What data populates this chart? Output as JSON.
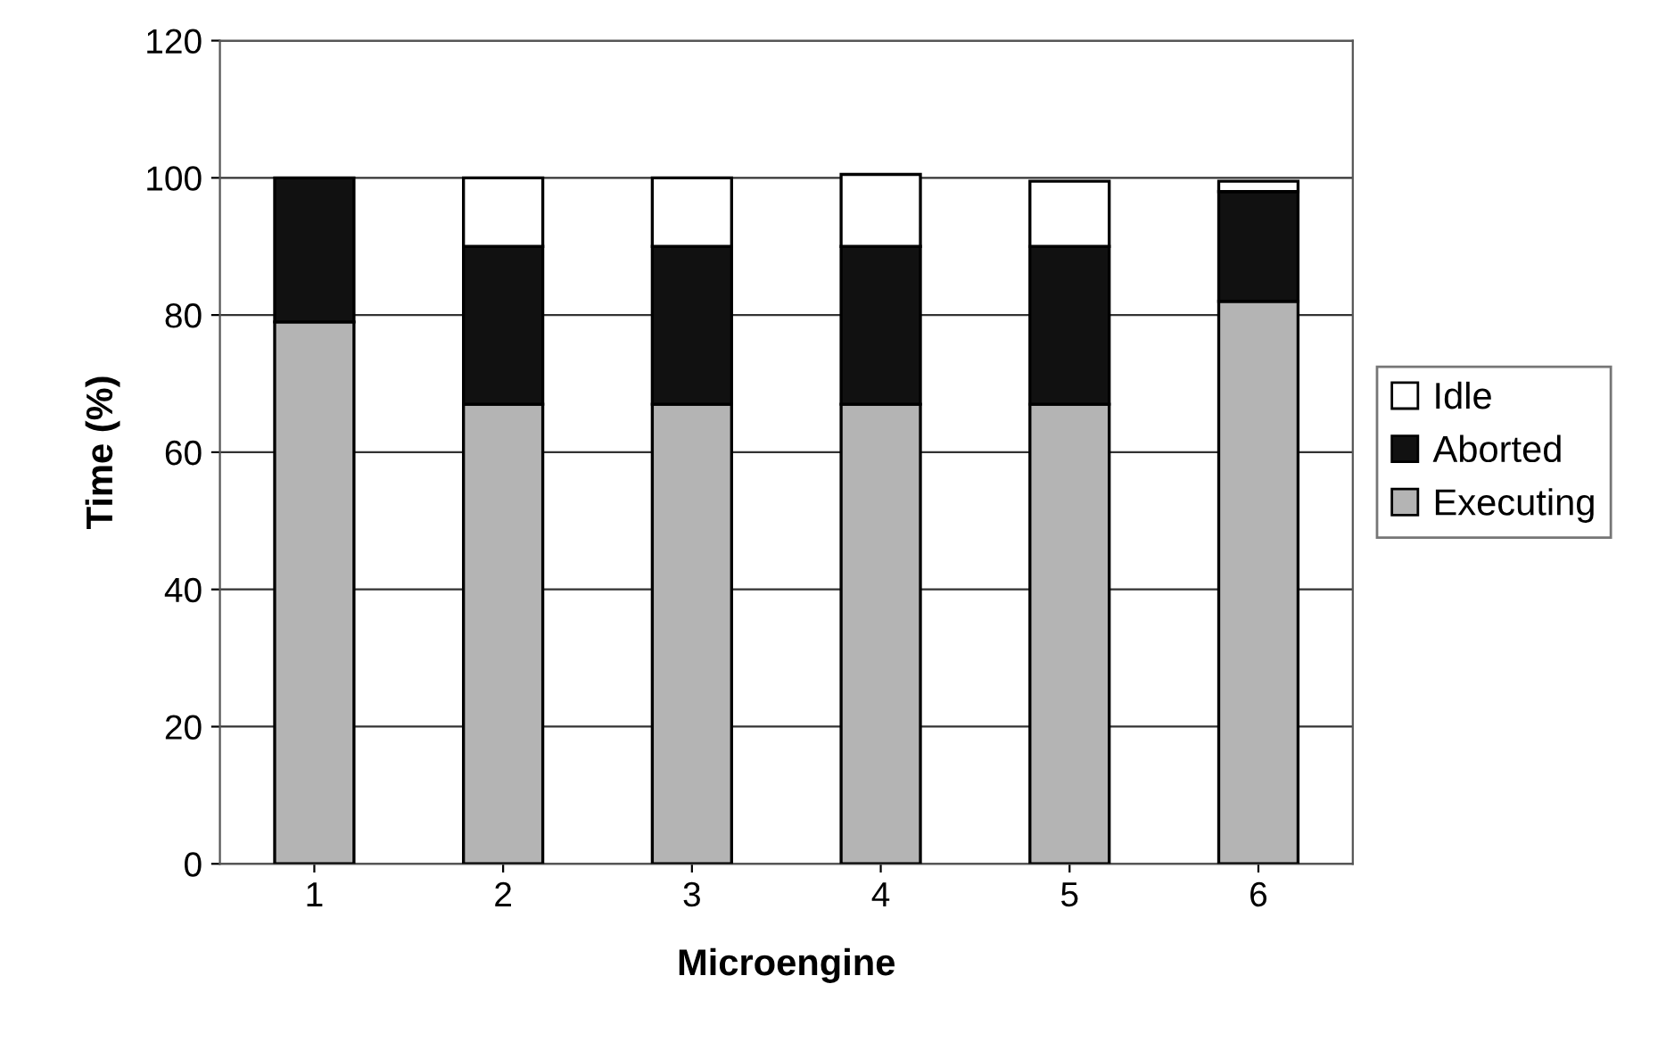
{
  "chart_data": {
    "type": "bar",
    "stacked": true,
    "xlabel": "Microengine",
    "ylabel": "Time (%)",
    "categories": [
      "1",
      "2",
      "3",
      "4",
      "5",
      "6"
    ],
    "series": [
      {
        "name": "Executing",
        "color": "#b4b4b4",
        "values": [
          79,
          67,
          67,
          67,
          67,
          82
        ]
      },
      {
        "name": "Aborted",
        "color": "#111111",
        "values": [
          21,
          23,
          23,
          23,
          23,
          16
        ]
      },
      {
        "name": "Idle",
        "color": "#ffffff",
        "values": [
          null,
          10,
          10,
          10.5,
          9.5,
          1.5
        ]
      }
    ],
    "ylim": [
      0,
      120
    ],
    "yticks": [
      0,
      20,
      40,
      60,
      80,
      100,
      120
    ],
    "grid": "y",
    "legend": "right"
  }
}
